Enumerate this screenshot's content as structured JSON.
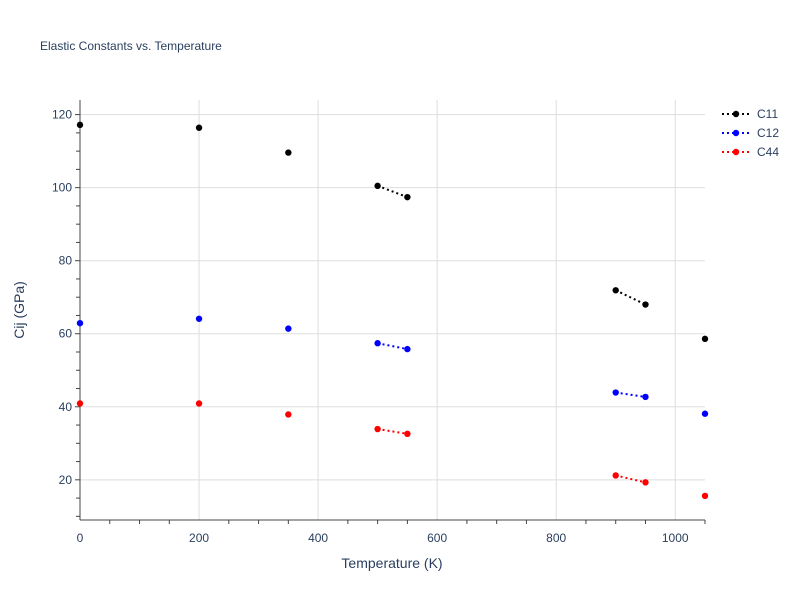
{
  "chart_data": {
    "type": "line",
    "title": "Elastic Constants vs. Temperature",
    "xlabel": "Temperature (K)",
    "ylabel": "Cij (GPa)",
    "xlim": [
      0,
      1050
    ],
    "ylim": [
      9,
      124
    ],
    "x_ticks": [
      0,
      200,
      400,
      600,
      800,
      1000
    ],
    "x_tick_labels": [
      "0",
      "200",
      "400",
      "600",
      "800",
      "1000"
    ],
    "y_ticks": [
      20,
      40,
      60,
      80,
      100,
      120
    ],
    "y_tick_labels": [
      "20",
      "40",
      "60",
      "80",
      "100",
      "120"
    ],
    "grid": true,
    "legend_position": "top-right",
    "line_style": "dotted",
    "series": [
      {
        "name": "C11",
        "color": "#000000",
        "points": [
          [
            0,
            117.2
          ],
          [
            200,
            116.4
          ],
          [
            350,
            109.6
          ],
          [
            500,
            100.5
          ],
          [
            550,
            97.4
          ],
          [
            900,
            71.9
          ],
          [
            950,
            68.0
          ],
          [
            1050,
            58.6
          ]
        ],
        "connected_segments": [
          [
            500,
            550
          ],
          [
            900,
            950
          ]
        ]
      },
      {
        "name": "C12",
        "color": "#0000ff",
        "points": [
          [
            0,
            62.9
          ],
          [
            200,
            64.1
          ],
          [
            350,
            61.4
          ],
          [
            500,
            57.4
          ],
          [
            550,
            55.8
          ],
          [
            900,
            43.9
          ],
          [
            950,
            42.7
          ],
          [
            1050,
            38.1
          ]
        ],
        "connected_segments": [
          [
            500,
            550
          ],
          [
            900,
            950
          ]
        ]
      },
      {
        "name": "C44",
        "color": "#ff0000",
        "points": [
          [
            0,
            40.9
          ],
          [
            200,
            40.9
          ],
          [
            350,
            37.9
          ],
          [
            500,
            33.9
          ],
          [
            550,
            32.6
          ],
          [
            900,
            21.2
          ],
          [
            950,
            19.3
          ],
          [
            1050,
            15.6
          ]
        ],
        "connected_segments": [
          [
            500,
            550
          ],
          [
            900,
            950
          ]
        ]
      }
    ]
  }
}
